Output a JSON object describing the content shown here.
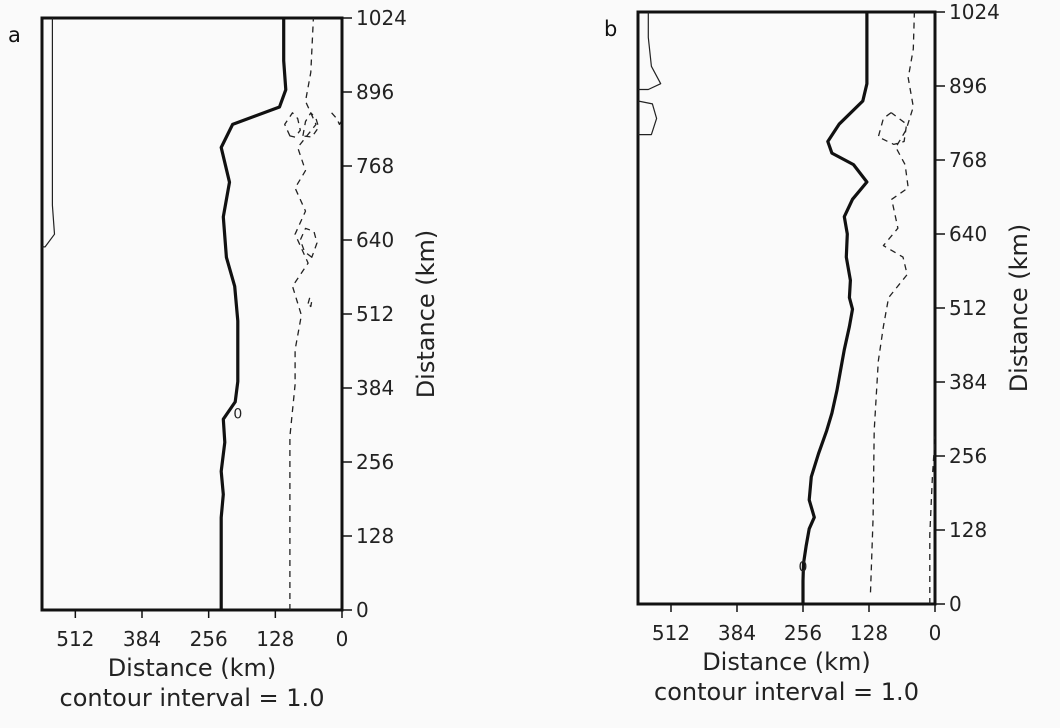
{
  "chart_data": [
    {
      "type": "contour",
      "panel_label": "a",
      "xlabel": "Distance (km)",
      "ylabel": "Distance (km)",
      "note": "contour interval = 1.0",
      "x_reversed": true,
      "xlim": [
        0,
        576
      ],
      "ylim": [
        0,
        1024
      ],
      "x_ticks": [
        "512",
        "384",
        "256",
        "128",
        "0"
      ],
      "x_tick_values": [
        512,
        384,
        256,
        128,
        0
      ],
      "y_ticks": [
        "0",
        "128",
        "256",
        "384",
        "512",
        "640",
        "768",
        "896",
        "1024"
      ],
      "y_tick_values": [
        0,
        128,
        256,
        384,
        512,
        640,
        768,
        896,
        1024
      ],
      "contour_labels": [
        {
          "text": "0",
          "x": 200,
          "y": 340
        }
      ],
      "series": [
        {
          "style": "thick",
          "points": [
            [
              232,
              0
            ],
            [
              232,
              80
            ],
            [
              232,
              160
            ],
            [
              228,
              200
            ],
            [
              232,
              240
            ],
            [
              225,
              290
            ],
            [
              228,
              330
            ],
            [
              205,
              360
            ],
            [
              200,
              395
            ],
            [
              200,
              440
            ],
            [
              200,
              500
            ],
            [
              206,
              560
            ],
            [
              222,
              610
            ],
            [
              228,
              680
            ],
            [
              216,
              740
            ],
            [
              232,
              800
            ],
            [
              210,
              840
            ],
            [
              120,
              870
            ],
            [
              108,
              900
            ],
            [
              112,
              950
            ],
            [
              112,
              1024
            ]
          ]
        },
        {
          "style": "thin",
          "points": [
            [
              556,
              1024
            ],
            [
              556,
              900
            ],
            [
              556,
              700
            ],
            [
              552,
              650
            ],
            [
              570,
              628
            ],
            [
              576,
              628
            ]
          ]
        },
        {
          "style": "dashed",
          "points": [
            [
              100,
              0
            ],
            [
              100,
              150
            ],
            [
              100,
              300
            ],
            [
              90,
              390
            ],
            [
              90,
              450
            ],
            [
              78,
              510
            ],
            [
              95,
              560
            ],
            [
              65,
              600
            ],
            [
              90,
              650
            ],
            [
              70,
              690
            ],
            [
              90,
              730
            ],
            [
              70,
              760
            ],
            [
              85,
              800
            ],
            [
              50,
              840
            ],
            [
              70,
              880
            ],
            [
              60,
              930
            ],
            [
              55,
              1024
            ]
          ]
        },
        {
          "style": "dashed",
          "closed": true,
          "points": [
            [
              58,
              610
            ],
            [
              72,
              620
            ],
            [
              80,
              640
            ],
            [
              70,
              660
            ],
            [
              54,
              655
            ],
            [
              48,
              635
            ]
          ]
        },
        {
          "style": "dashed",
          "closed": true,
          "points": [
            [
              100,
              820
            ],
            [
              110,
              840
            ],
            [
              95,
              860
            ],
            [
              85,
              850
            ],
            [
              80,
              830
            ],
            [
              90,
              818
            ]
          ]
        },
        {
          "style": "dashed",
          "closed": true,
          "points": [
            [
              75,
              820
            ],
            [
              70,
              845
            ],
            [
              60,
              860
            ],
            [
              50,
              850
            ],
            [
              45,
              835
            ],
            [
              58,
              818
            ]
          ]
        },
        {
          "style": "dashed",
          "points": [
            [
              20,
              860
            ],
            [
              10,
              850
            ],
            [
              5,
              840
            ],
            [
              0,
              848
            ]
          ]
        },
        {
          "style": "dashed",
          "closed": true,
          "points": [
            [
              65,
              530
            ],
            [
              62,
              540
            ],
            [
              58,
              535
            ],
            [
              60,
              525
            ]
          ]
        }
      ]
    },
    {
      "type": "contour",
      "panel_label": "b",
      "xlabel": "Distance (km)",
      "ylabel": "Distance (km)",
      "note": "contour interval = 1.0",
      "x_reversed": true,
      "xlim": [
        0,
        576
      ],
      "ylim": [
        0,
        1024
      ],
      "x_ticks": [
        "512",
        "384",
        "256",
        "128",
        "0"
      ],
      "x_tick_values": [
        512,
        384,
        256,
        128,
        0
      ],
      "y_ticks": [
        "0",
        "128",
        "256",
        "384",
        "512",
        "640",
        "768",
        "896",
        "1024"
      ],
      "y_tick_values": [
        0,
        128,
        256,
        384,
        512,
        640,
        768,
        896,
        1024
      ],
      "contour_labels": [
        {
          "text": "0",
          "x": 256,
          "y": 65
        }
      ],
      "series": [
        {
          "style": "thick",
          "points": [
            [
              256,
              0
            ],
            [
              256,
              40
            ],
            [
              255,
              70
            ],
            [
              250,
              100
            ],
            [
              244,
              130
            ],
            [
              234,
              150
            ],
            [
              244,
              180
            ],
            [
              240,
              220
            ],
            [
              226,
              260
            ],
            [
              210,
              300
            ],
            [
              200,
              330
            ],
            [
              190,
              370
            ],
            [
              184,
              400
            ],
            [
              176,
              440
            ],
            [
              166,
              480
            ],
            [
              160,
              510
            ],
            [
              166,
              530
            ],
            [
              164,
              560
            ],
            [
              172,
              600
            ],
            [
              170,
              640
            ],
            [
              176,
              670
            ],
            [
              160,
              700
            ],
            [
              132,
              730
            ],
            [
              158,
              760
            ],
            [
              200,
              780
            ],
            [
              208,
              800
            ],
            [
              186,
              830
            ],
            [
              140,
              870
            ],
            [
              132,
              900
            ],
            [
              132,
              950
            ],
            [
              132,
              1024
            ]
          ]
        },
        {
          "style": "thin",
          "points": [
            [
              556,
              1024
            ],
            [
              556,
              980
            ],
            [
              550,
              930
            ],
            [
              532,
              900
            ],
            [
              556,
              890
            ],
            [
              576,
              890
            ]
          ]
        },
        {
          "style": "thin",
          "closed": true,
          "points": [
            [
              576,
              870
            ],
            [
              548,
              865
            ],
            [
              540,
              840
            ],
            [
              550,
              812
            ],
            [
              576,
              812
            ]
          ]
        },
        {
          "style": "dashed",
          "points": [
            [
              125,
              20
            ],
            [
              120,
              150
            ],
            [
              118,
              300
            ],
            [
              110,
              420
            ],
            [
              100,
              480
            ],
            [
              90,
              530
            ],
            [
              54,
              570
            ],
            [
              62,
              600
            ],
            [
              100,
              620
            ],
            [
              72,
              650
            ],
            [
              84,
              700
            ],
            [
              52,
              720
            ],
            [
              58,
              760
            ],
            [
              76,
              790
            ],
            [
              56,
              820
            ],
            [
              42,
              860
            ],
            [
              52,
              910
            ],
            [
              42,
              960
            ],
            [
              40,
              1024
            ]
          ]
        },
        {
          "style": "dashed",
          "points": [
            [
              85,
              850
            ],
            [
              100,
              840
            ],
            [
              110,
              808
            ],
            [
              80,
              795
            ],
            [
              60,
              800
            ],
            [
              55,
              830
            ],
            [
              85,
              850
            ]
          ]
        },
        {
          "style": "dashed",
          "points": [
            [
              10,
              0
            ],
            [
              10,
              120
            ],
            [
              5,
              220
            ],
            [
              0,
              290
            ]
          ]
        }
      ]
    }
  ]
}
